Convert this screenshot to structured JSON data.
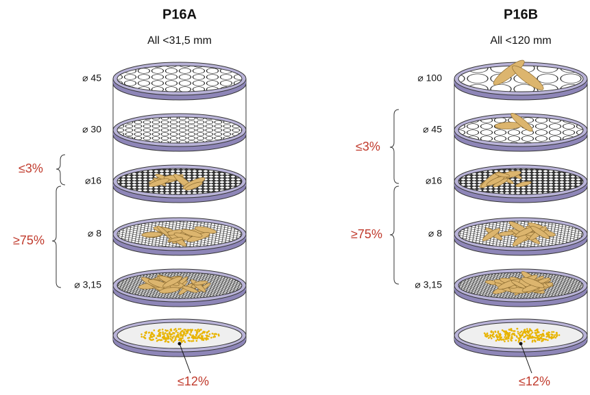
{
  "panels": [
    {
      "title": "P16A",
      "subtitle": "All <31,5 mm",
      "sieves": [
        "⌀ 45",
        "⌀ 30",
        "⌀16",
        "⌀ 8",
        "⌀ 3,15"
      ],
      "brackets": [
        "≤3%",
        "≥75%"
      ],
      "bottom": "≤12%"
    },
    {
      "title": "P16B",
      "subtitle": "All <120 mm",
      "sieves": [
        "⌀ 100",
        "⌀ 45",
        "⌀16",
        "⌀ 8",
        "⌀ 3,15"
      ],
      "brackets": [
        "≤3%",
        "≥75%"
      ],
      "bottom": "≤12%"
    }
  ]
}
